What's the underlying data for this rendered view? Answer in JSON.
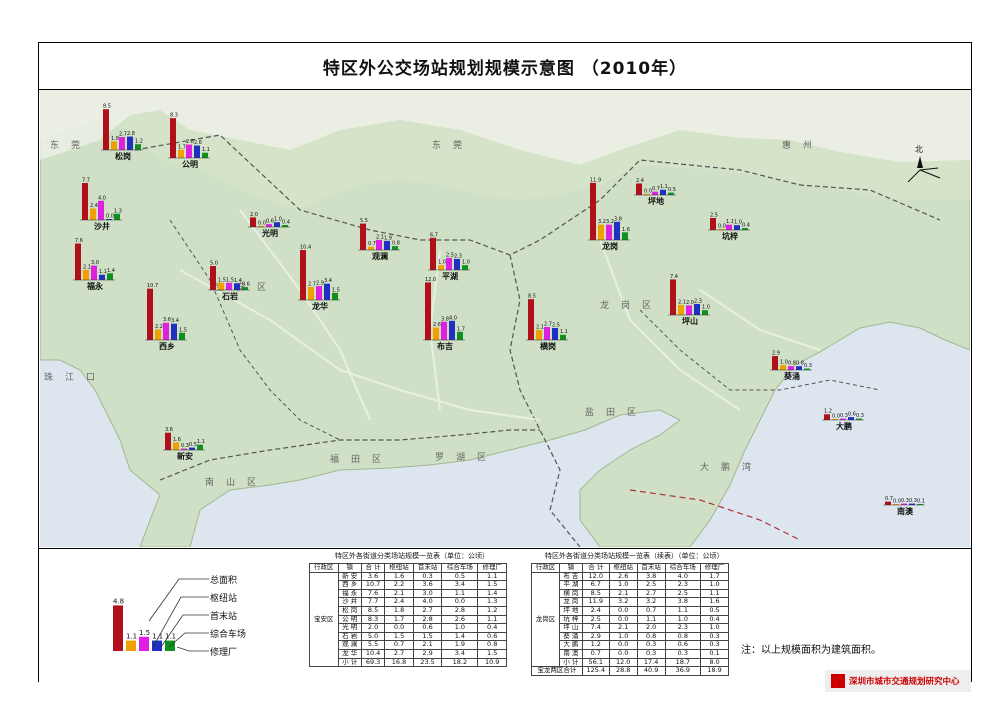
{
  "title": "特区外公交场站规划规模示意图 （2010年）",
  "compass": "北",
  "colors": {
    "total": "#b0101a",
    "hub": "#f0a000",
    "terminal": "#e020e0",
    "depot": "#2030c0",
    "repair": "#109020",
    "land": "#c8dcc0",
    "sea": "#c8d8e8"
  },
  "region_labels": [
    "东莞",
    "东莞",
    "惠州",
    "宝安区",
    "龙岗区",
    "福田区",
    "罗湖区",
    "南山区",
    "盐田区",
    "珠江口",
    "大鹏湾"
  ],
  "chart_data": {
    "type": "bar",
    "series": [
      {
        "name": "总面积"
      },
      {
        "name": "枢纽站"
      },
      {
        "name": "首末站"
      },
      {
        "name": "综合车场"
      },
      {
        "name": "修理厂"
      }
    ],
    "charts": [
      {
        "name": "松岗",
        "values": [
          8.5,
          1.8,
          2.7,
          2.8,
          1.2
        ]
      },
      {
        "name": "公明",
        "values": [
          8.3,
          1.7,
          2.8,
          2.6,
          1.1
        ]
      },
      {
        "name": "光明",
        "values": [
          2.0,
          0.0,
          0.6,
          1.0,
          0.4
        ]
      },
      {
        "name": "沙井",
        "values": [
          7.7,
          2.4,
          4.0,
          0.0,
          1.3
        ]
      },
      {
        "name": "福永",
        "values": [
          7.6,
          2.1,
          3.0,
          1.1,
          1.4
        ]
      },
      {
        "name": "石岩",
        "values": [
          5.0,
          1.5,
          1.5,
          1.4,
          0.6
        ]
      },
      {
        "name": "观澜",
        "values": [
          5.5,
          0.7,
          2.1,
          1.9,
          0.8
        ]
      },
      {
        "name": "龙华",
        "values": [
          10.4,
          2.7,
          2.9,
          3.4,
          1.5
        ]
      },
      {
        "name": "西乡",
        "values": [
          10.7,
          2.2,
          3.6,
          3.4,
          1.5
        ]
      },
      {
        "name": "新安",
        "values": [
          3.6,
          1.6,
          0.3,
          0.5,
          1.1
        ]
      },
      {
        "name": "平湖",
        "values": [
          6.7,
          1.0,
          2.5,
          2.3,
          1.0
        ]
      },
      {
        "name": "布吉",
        "values": [
          12.0,
          2.6,
          3.8,
          4.0,
          1.7
        ]
      },
      {
        "name": "横岗",
        "values": [
          8.5,
          2.1,
          2.7,
          2.5,
          1.1
        ]
      },
      {
        "name": "龙岗",
        "values": [
          11.9,
          3.2,
          3.2,
          3.8,
          1.6
        ]
      },
      {
        "name": "坪地",
        "values": [
          2.4,
          0.0,
          0.7,
          1.1,
          0.5
        ]
      },
      {
        "name": "坑梓",
        "values": [
          2.5,
          0.0,
          1.1,
          1.0,
          0.4
        ]
      },
      {
        "name": "坪山",
        "values": [
          7.4,
          2.1,
          2.0,
          2.3,
          1.0
        ]
      },
      {
        "name": "葵涌",
        "values": [
          2.9,
          1.0,
          0.8,
          0.8,
          0.3
        ]
      },
      {
        "name": "大鹏",
        "values": [
          1.2,
          0.0,
          0.3,
          0.6,
          0.3
        ]
      },
      {
        "name": "南澳",
        "values": [
          0.7,
          0.0,
          0.3,
          0.3,
          0.1
        ]
      }
    ],
    "legend_example": [
      4.8,
      1.1,
      1.5,
      1.1,
      1.1
    ]
  },
  "legend": {
    "labels": [
      "总面积",
      "枢纽站",
      "首末站",
      "综合车场",
      "修理厂"
    ],
    "example_values": [
      "4.8",
      "1.1",
      "1.5",
      "1.1",
      "1.1"
    ]
  },
  "table1": {
    "caption": "特区外各街道分类场站规模一览表（单位：公顷）",
    "headers": [
      "行政区",
      "镇",
      "合 计",
      "枢纽站",
      "首末站",
      "综合车场",
      "修理厂"
    ],
    "district": "宝安区",
    "rows": [
      [
        "新 安",
        "3.6",
        "1.6",
        "0.3",
        "0.5",
        "1.1"
      ],
      [
        "西 乡",
        "10.7",
        "2.2",
        "3.6",
        "3.4",
        "1.5"
      ],
      [
        "福 永",
        "7.6",
        "2.1",
        "3.0",
        "1.1",
        "1.4"
      ],
      [
        "沙 井",
        "7.7",
        "2.4",
        "4.0",
        "0.0",
        "1.3"
      ],
      [
        "松 岗",
        "8.5",
        "1.8",
        "2.7",
        "2.8",
        "1.2"
      ],
      [
        "公 明",
        "8.3",
        "1.7",
        "2.8",
        "2.6",
        "1.1"
      ],
      [
        "光 明",
        "2.0",
        "0.0",
        "0.6",
        "1.0",
        "0.4"
      ],
      [
        "石 岩",
        "5.0",
        "1.5",
        "1.5",
        "1.4",
        "0.6"
      ],
      [
        "观 澜",
        "5.5",
        "0.7",
        "2.1",
        "1.9",
        "0.8"
      ],
      [
        "龙 华",
        "10.4",
        "2.7",
        "2.9",
        "3.4",
        "1.5"
      ],
      [
        "小 计",
        "69.3",
        "16.8",
        "23.5",
        "18.2",
        "10.9"
      ]
    ]
  },
  "table2": {
    "caption": "特区外各街道分类场站规模一览表（续表）（单位：公顷）",
    "headers": [
      "行政区",
      "镇",
      "合 计",
      "枢纽站",
      "首末站",
      "综合车场",
      "修理厂"
    ],
    "district": "龙岗区",
    "rows": [
      [
        "布 吉",
        "12.0",
        "2.6",
        "3.8",
        "4.0",
        "1.7"
      ],
      [
        "平 湖",
        "6.7",
        "1.0",
        "2.5",
        "2.3",
        "1.0"
      ],
      [
        "横 岗",
        "8.5",
        "2.1",
        "2.7",
        "2.5",
        "1.1"
      ],
      [
        "龙 岗",
        "11.9",
        "3.2",
        "3.2",
        "3.8",
        "1.6"
      ],
      [
        "坪 地",
        "2.4",
        "0.0",
        "0.7",
        "1.1",
        "0.5"
      ],
      [
        "坑 梓",
        "2.5",
        "0.0",
        "1.1",
        "1.0",
        "0.4"
      ],
      [
        "坪 山",
        "7.4",
        "2.1",
        "2.0",
        "2.3",
        "1.0"
      ],
      [
        "葵 涌",
        "2.9",
        "1.0",
        "0.8",
        "0.8",
        "0.3"
      ],
      [
        "大 鹏",
        "1.2",
        "0.0",
        "0.3",
        "0.6",
        "0.3"
      ],
      [
        "南 澳",
        "0.7",
        "0.0",
        "0.3",
        "0.3",
        "0.1"
      ],
      [
        "小 计",
        "56.1",
        "12.0",
        "17.4",
        "18.7",
        "8.0"
      ]
    ],
    "total_row": [
      "宝龙两区合计",
      "125.4",
      "28.8",
      "40.9",
      "36.9",
      "18.9"
    ]
  },
  "note": "注：以上规模面积为建筑面积。",
  "logo": "深圳市城市交通规划研究中心"
}
